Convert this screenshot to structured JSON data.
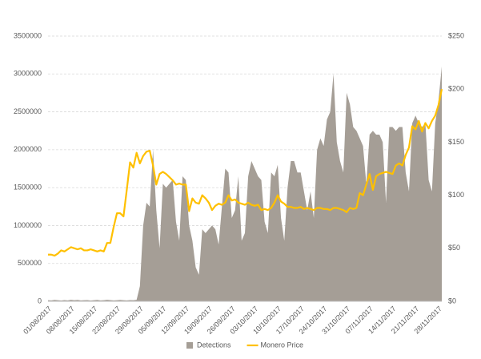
{
  "chart_data": {
    "type": "area",
    "categories": [
      "01/08/2017",
      null,
      null,
      null,
      null,
      null,
      null,
      "08/08/2017",
      null,
      null,
      null,
      null,
      null,
      null,
      "15/08/2017",
      null,
      null,
      null,
      null,
      null,
      null,
      "22/08/2017",
      null,
      null,
      null,
      null,
      null,
      null,
      "29/08/2017",
      null,
      null,
      null,
      null,
      null,
      null,
      "05/09/2017",
      null,
      null,
      null,
      null,
      null,
      null,
      "12/09/2017",
      null,
      null,
      null,
      null,
      null,
      null,
      "19/09/2017",
      null,
      null,
      null,
      null,
      null,
      null,
      "26/09/2017",
      null,
      null,
      null,
      null,
      null,
      null,
      "03/10/2017",
      null,
      null,
      null,
      null,
      null,
      null,
      "10/10/2017",
      null,
      null,
      null,
      null,
      null,
      null,
      "17/10/2017",
      null,
      null,
      null,
      null,
      null,
      null,
      "24/10/2017",
      null,
      null,
      null,
      null,
      null,
      null,
      "31/10/2017",
      null,
      null,
      null,
      null,
      null,
      null,
      "07/11/2017",
      null,
      null,
      null,
      null,
      null,
      null,
      "14/11/2017",
      null,
      null,
      null,
      null,
      null,
      null,
      "21/11/2017",
      null,
      null,
      null,
      null,
      null,
      null,
      "28/11/2017",
      null
    ],
    "series": [
      {
        "name": "Detections",
        "type": "area",
        "color": "#a59e96",
        "axis": "y",
        "values": [
          15000,
          12000,
          18000,
          14000,
          10000,
          16000,
          12000,
          20000,
          15000,
          18000,
          12000,
          14000,
          16000,
          10000,
          15000,
          18000,
          12000,
          14000,
          20000,
          16000,
          12000,
          15000,
          18000,
          14000,
          12000,
          16000,
          15000,
          20000,
          200000,
          1000000,
          1300000,
          1250000,
          2000000,
          1200000,
          700000,
          1550000,
          1500000,
          1550000,
          1600000,
          1050000,
          800000,
          1650000,
          1600000,
          1000000,
          800000,
          450000,
          350000,
          950000,
          900000,
          950000,
          1000000,
          950000,
          750000,
          1250000,
          1750000,
          1700000,
          1100000,
          1200000,
          1650000,
          800000,
          900000,
          1650000,
          1850000,
          1750000,
          1650000,
          1600000,
          1050000,
          900000,
          1700000,
          1650000,
          1800000,
          1100000,
          800000,
          1500000,
          1850000,
          1850000,
          1700000,
          1700000,
          1450000,
          1200000,
          1450000,
          1100000,
          2000000,
          2150000,
          2050000,
          2400000,
          2500000,
          3000000,
          2100000,
          1850000,
          1700000,
          2750000,
          2600000,
          2300000,
          2250000,
          2150000,
          2050000,
          1550000,
          2200000,
          2250000,
          2200000,
          2200000,
          2100000,
          1300000,
          2300000,
          2300000,
          2250000,
          2300000,
          2300000,
          1700000,
          1450000,
          2350000,
          2450000,
          2350000,
          2300000,
          2350000,
          1600000,
          1450000,
          2350000,
          2650000,
          3100000
        ]
      },
      {
        "name": "Monero Price",
        "type": "line",
        "color": "#ffc000",
        "axis": "y2",
        "values": [
          44,
          44,
          43,
          45,
          48,
          47,
          49,
          51,
          50,
          49,
          50,
          48,
          48,
          49,
          48,
          47,
          48,
          47,
          55,
          55,
          70,
          83,
          83,
          80,
          105,
          131,
          126,
          140,
          130,
          137,
          141,
          142,
          128,
          110,
          120,
          122,
          120,
          117,
          114,
          110,
          111,
          110,
          110,
          85,
          97,
          93,
          92,
          100,
          97,
          93,
          86,
          90,
          92,
          91,
          93,
          100,
          95,
          96,
          93,
          92,
          91,
          93,
          91,
          90,
          91,
          86,
          87,
          86,
          88,
          93,
          100,
          94,
          92,
          89,
          89,
          88,
          88,
          89,
          87,
          88,
          87,
          86,
          88,
          88,
          87,
          87,
          86,
          88,
          88,
          87,
          86,
          84,
          88,
          87,
          88,
          102,
          100,
          110,
          120,
          105,
          118,
          120,
          121,
          122,
          121,
          120,
          128,
          130,
          128,
          138,
          145,
          165,
          162,
          170,
          160,
          168,
          163,
          170,
          175,
          185,
          200
        ]
      }
    ],
    "ylim": [
      0,
      3500000
    ],
    "yticks": [
      0,
      500000,
      1000000,
      1500000,
      2000000,
      2500000,
      3000000,
      3500000
    ],
    "y2lim": [
      0,
      250
    ],
    "y2ticks": [
      {
        "value": 0,
        "label": "$0"
      },
      {
        "value": 50,
        "label": "$50"
      },
      {
        "value": 100,
        "label": "$100"
      },
      {
        "value": 150,
        "label": "$150"
      },
      {
        "value": 200,
        "label": "$200"
      },
      {
        "value": 250,
        "label": "$250"
      }
    ],
    "grid": true,
    "legend": "bottom"
  }
}
